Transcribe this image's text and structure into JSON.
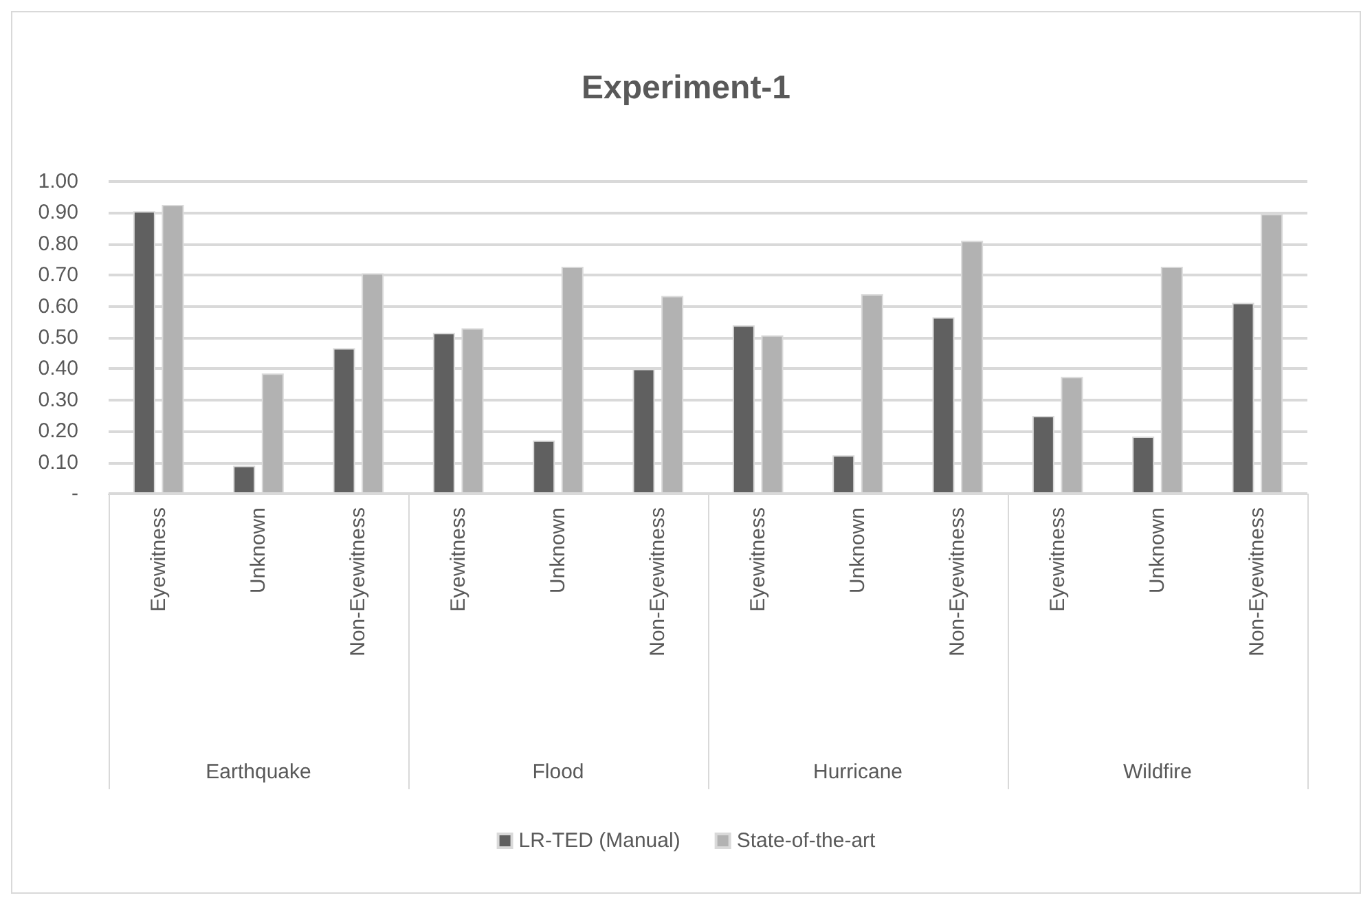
{
  "chart_data": {
    "type": "bar",
    "title": "Experiment-1",
    "categories": [
      "Eyewitness",
      "Unknown",
      "Non-Eyewitness",
      "Eyewitness",
      "Unknown",
      "Non-Eyewitness",
      "Eyewitness",
      "Unknown",
      "Non-Eyewitness",
      "Eyewitness",
      "Unknown",
      "Non-Eyewitness"
    ],
    "annotations": [
      "Earthquake",
      "Flood",
      "Hurricane",
      "Wildfire"
    ],
    "series": [
      {
        "name": "LR-TED (Manual)",
        "color": "#606060",
        "values": [
          0.905,
          0.089,
          0.466,
          0.515,
          0.17,
          0.4,
          0.539,
          0.123,
          0.565,
          0.249,
          0.183,
          0.611
        ]
      },
      {
        "name": "State-of-the-art",
        "color": "#b2b2b2",
        "values": [
          0.925,
          0.385,
          0.706,
          0.53,
          0.727,
          0.633,
          0.507,
          0.639,
          0.81,
          0.374,
          0.727,
          0.896
        ]
      }
    ],
    "ylim": [
      0,
      1
    ],
    "yticks": [
      {
        "value": 0,
        "label": "-"
      },
      {
        "value": 0.1,
        "label": "0.10"
      },
      {
        "value": 0.2,
        "label": "0.20"
      },
      {
        "value": 0.3,
        "label": "0.30"
      },
      {
        "value": 0.4,
        "label": "0.40"
      },
      {
        "value": 0.5,
        "label": "0.50"
      },
      {
        "value": 0.6,
        "label": "0.60"
      },
      {
        "value": 0.7,
        "label": "0.70"
      },
      {
        "value": 0.8,
        "label": "0.80"
      },
      {
        "value": 0.9,
        "label": "0.90"
      },
      {
        "value": 1,
        "label": "1.00"
      }
    ],
    "grid": "y",
    "legend": "bottom"
  }
}
